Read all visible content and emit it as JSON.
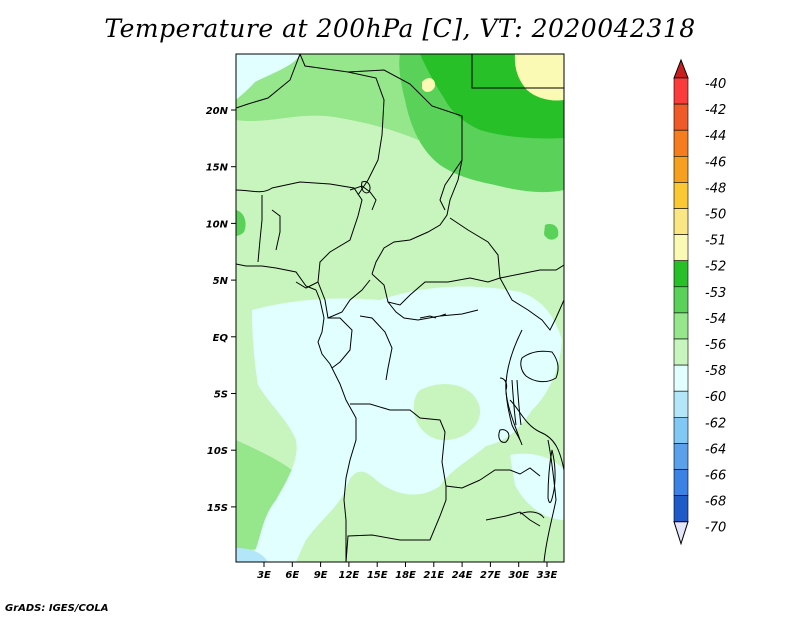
{
  "title": "Temperature at 200hPa [C], VT: 2020042318",
  "credit": "GrADS: IGES/COLA",
  "map": {
    "region": "Central Africa",
    "lat_labels": [
      "20N",
      "15N",
      "10N",
      "5N",
      "EQ",
      "5S",
      "10S",
      "15S"
    ],
    "lon_labels": [
      "3E",
      "6E",
      "9E",
      "12E",
      "15E",
      "18E",
      "21E",
      "24E",
      "27E",
      "30E",
      "33E"
    ]
  },
  "colorbar": {
    "labels": [
      "-40",
      "-42",
      "-44",
      "-46",
      "-48",
      "-50",
      "-51",
      "-52",
      "-53",
      "-54",
      "-56",
      "-58",
      "-60",
      "-62",
      "-64",
      "-66",
      "-68",
      "-70"
    ],
    "colors": [
      "#fa3c3c",
      "#f05a28",
      "#f57d1e",
      "#f5a01e",
      "#fac832",
      "#fae682",
      "#fafab4",
      "#28c028",
      "#5ad25a",
      "#96e68c",
      "#c8f5be",
      "#e1ffff",
      "#b4e6fa",
      "#82c8f5",
      "#5aa0eb",
      "#3c82e6",
      "#1e5ac8",
      "#1432a0"
    ],
    "top_arrow_color": "#c81e1e",
    "bottom_arrow_color": "#e6e6fa"
  },
  "field_colors": {
    "lt_cyan": "#e1ffff",
    "pale_green": "#c8f5be",
    "lt_green": "#96e68c",
    "mid_green": "#5ad25a",
    "dk_green": "#28c028",
    "pale_yellow": "#fafab4",
    "yellow": "#fae682",
    "lt_blue": "#b4e6fa"
  }
}
